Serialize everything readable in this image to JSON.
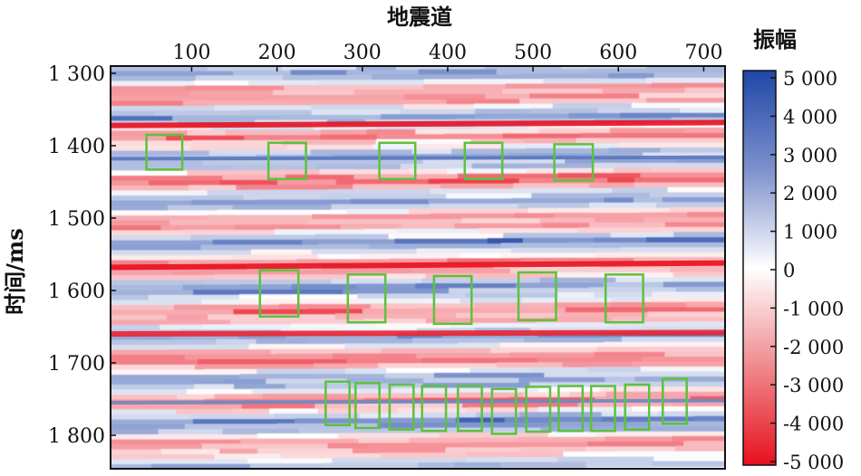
{
  "chart_data": {
    "type": "heatmap",
    "title": "地震道",
    "xlabel": "",
    "ylabel": "时间/ms",
    "xlim": [
      5,
      725
    ],
    "ylim": [
      1300,
      1850
    ],
    "x_ticks": [
      100,
      200,
      300,
      400,
      500,
      600,
      700
    ],
    "y_ticks": [
      1300,
      1400,
      1500,
      1600,
      1700,
      1800
    ],
    "x_tick_labels": [
      "100",
      "200",
      "300",
      "400",
      "500",
      "600",
      "700"
    ],
    "y_tick_labels": [
      "1 300",
      "1 400",
      "1 500",
      "1 600",
      "1 700",
      "1 800"
    ],
    "colorbar": {
      "title": "振幅",
      "range": [
        -5000,
        5000
      ],
      "ticks": [
        5000,
        4000,
        3000,
        2000,
        1000,
        0,
        -1000,
        -2000,
        -3000,
        -4000,
        -5000
      ],
      "tick_labels": [
        "5 000",
        "4 000",
        "3 000",
        "2 000",
        "1 000",
        "0",
        "-1 000",
        "-2 000",
        "-3 000",
        "-4 000",
        "-5 000"
      ],
      "colors": {
        "max": "#1f47a8",
        "mid": "#ffffff",
        "min": "#e8101e"
      }
    },
    "reflectors": [
      {
        "time_start": 1372,
        "time_end": 1368,
        "amplitude": -5000
      },
      {
        "time_start": 1418,
        "time_end": 1416,
        "amplitude": 3500
      },
      {
        "time_start": 1568,
        "time_end": 1562,
        "amplitude": -5000
      },
      {
        "time_start": 1660,
        "time_end": 1658,
        "amplitude": -4500
      },
      {
        "time_start": 1755,
        "time_end": 1752,
        "amplitude": 3000
      }
    ],
    "highlight_boxes": {
      "color": "#5cc23c",
      "items": [
        {
          "x": [
            47,
            89
          ],
          "t": [
            1385,
            1433
          ]
        },
        {
          "x": [
            190,
            234
          ],
          "t": [
            1396,
            1446
          ]
        },
        {
          "x": [
            320,
            362
          ],
          "t": [
            1396,
            1446
          ]
        },
        {
          "x": [
            420,
            464
          ],
          "t": [
            1396,
            1446
          ]
        },
        {
          "x": [
            525,
            570
          ],
          "t": [
            1398,
            1448
          ]
        },
        {
          "x": [
            180,
            225
          ],
          "t": [
            1572,
            1636
          ]
        },
        {
          "x": [
            283,
            327
          ],
          "t": [
            1578,
            1644
          ]
        },
        {
          "x": [
            384,
            428
          ],
          "t": [
            1580,
            1646
          ]
        },
        {
          "x": [
            483,
            527
          ],
          "t": [
            1575,
            1641
          ]
        },
        {
          "x": [
            585,
            629
          ],
          "t": [
            1578,
            1644
          ]
        },
        {
          "x": [
            257,
            285
          ],
          "t": [
            1726,
            1786
          ]
        },
        {
          "x": [
            292,
            320
          ],
          "t": [
            1728,
            1790
          ]
        },
        {
          "x": [
            332,
            360
          ],
          "t": [
            1730,
            1792
          ]
        },
        {
          "x": [
            370,
            398
          ],
          "t": [
            1732,
            1794
          ]
        },
        {
          "x": [
            412,
            440
          ],
          "t": [
            1732,
            1794
          ]
        },
        {
          "x": [
            452,
            480
          ],
          "t": [
            1736,
            1798
          ]
        },
        {
          "x": [
            492,
            520
          ],
          "t": [
            1733,
            1795
          ]
        },
        {
          "x": [
            530,
            558
          ],
          "t": [
            1732,
            1794
          ]
        },
        {
          "x": [
            568,
            596
          ],
          "t": [
            1732,
            1794
          ]
        },
        {
          "x": [
            608,
            636
          ],
          "t": [
            1730,
            1792
          ]
        },
        {
          "x": [
            652,
            680
          ],
          "t": [
            1722,
            1784
          ]
        }
      ]
    },
    "grid": false
  }
}
